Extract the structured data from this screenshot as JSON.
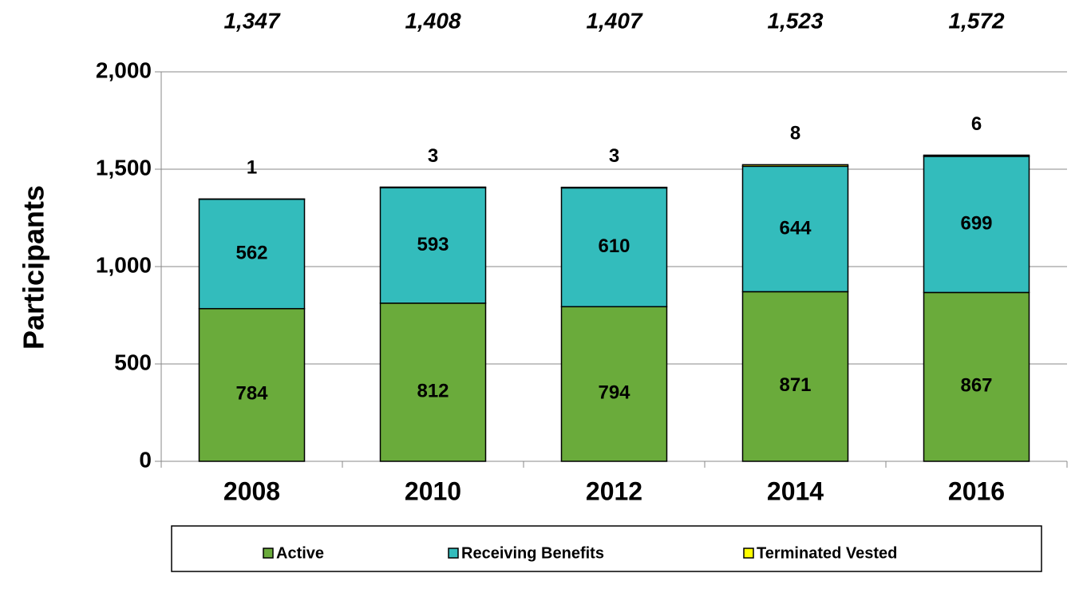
{
  "chart_data": {
    "type": "stacked_bar",
    "y_axis_label": "Participants",
    "categories": [
      "2008",
      "2010",
      "2012",
      "2014",
      "2016"
    ],
    "series": [
      {
        "name": "Active",
        "color": "#6aab3b",
        "values": [
          784,
          812,
          794,
          871,
          867
        ]
      },
      {
        "name": "Receiving Benefits",
        "color": "#33bcbc",
        "values": [
          562,
          593,
          610,
          644,
          699
        ]
      },
      {
        "name": "Terminated Vested",
        "color": "#ffff00",
        "values": [
          1,
          3,
          3,
          8,
          6
        ]
      }
    ],
    "totals": [
      1347,
      1408,
      1407,
      1523,
      1572
    ],
    "total_labels": [
      "1,347",
      "1,408",
      "1,407",
      "1,523",
      "1,572"
    ],
    "ylim": [
      0,
      2000
    ],
    "yticks": [
      0,
      {
        "value": 500,
        "label": "500"
      },
      {
        "value": 1000,
        "label": "1,000"
      },
      {
        "value": 1500,
        "label": "1,500"
      },
      {
        "value": 2000,
        "label": "2,000"
      }
    ],
    "grid": true,
    "legend": "bottom"
  }
}
